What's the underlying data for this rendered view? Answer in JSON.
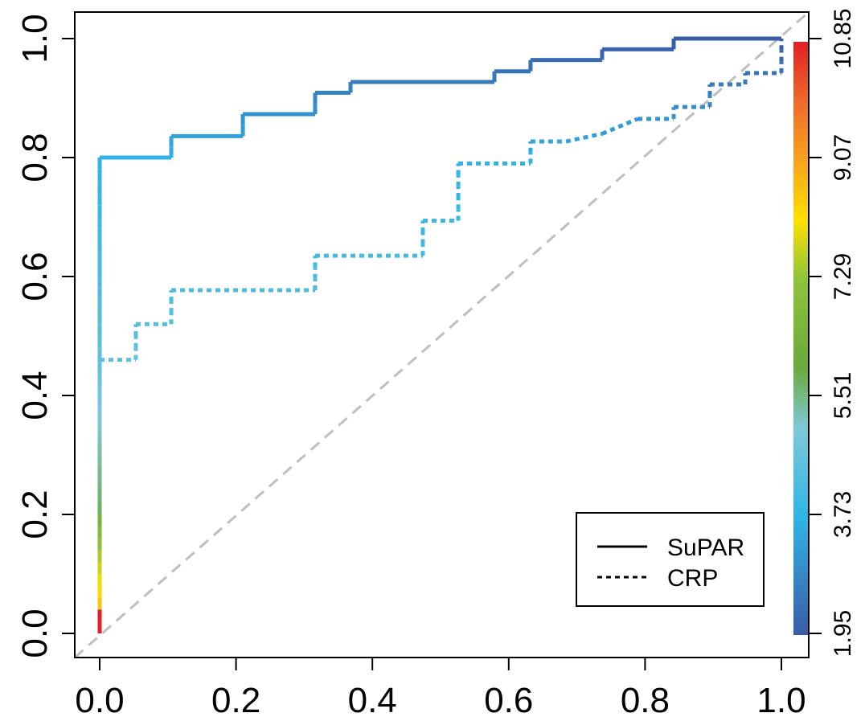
{
  "chart_data": {
    "type": "line",
    "xlim": [
      0,
      1
    ],
    "ylim": [
      0,
      1
    ],
    "x_ticks": [
      "0.0",
      "0.2",
      "0.4",
      "0.6",
      "0.8",
      "1.0"
    ],
    "y_ticks": [
      "0.0",
      "0.2",
      "0.4",
      "0.6",
      "0.8",
      "1.0"
    ],
    "colorbar": {
      "ticks": [
        "1.95",
        "3.73",
        "5.51",
        "7.29",
        "9.07",
        "10.85"
      ],
      "range": [
        1.95,
        10.85
      ],
      "colors": [
        "#3a5ba8",
        "#2fb5e6",
        "#7fc8d8",
        "#6aaa3a",
        "#8fc43a",
        "#ffe000",
        "#f7a21d",
        "#ee6a2a",
        "#e31e24"
      ]
    },
    "diagonal": {
      "style": "dashed",
      "color": "#bfbfbf"
    },
    "legend": {
      "position": "bottom-right"
    },
    "series": [
      {
        "name": "SuPAR",
        "style": "solid",
        "points": [
          [
            0,
            0
          ],
          [
            0,
            0.8
          ],
          [
            0.105,
            0.8
          ],
          [
            0.105,
            0.836
          ],
          [
            0.21,
            0.836
          ],
          [
            0.21,
            0.873
          ],
          [
            0.316,
            0.873
          ],
          [
            0.316,
            0.909
          ],
          [
            0.368,
            0.909
          ],
          [
            0.368,
            0.927
          ],
          [
            0.579,
            0.927
          ],
          [
            0.579,
            0.945
          ],
          [
            0.632,
            0.945
          ],
          [
            0.632,
            0.964
          ],
          [
            0.737,
            0.964
          ],
          [
            0.737,
            0.982
          ],
          [
            0.842,
            0.982
          ],
          [
            0.842,
            1.0
          ],
          [
            1.0,
            1.0
          ]
        ]
      },
      {
        "name": "CRP",
        "style": "dotted",
        "points": [
          [
            0,
            0
          ],
          [
            0,
            0.46
          ],
          [
            0.053,
            0.46
          ],
          [
            0.053,
            0.52
          ],
          [
            0.105,
            0.52
          ],
          [
            0.105,
            0.577
          ],
          [
            0.316,
            0.577
          ],
          [
            0.316,
            0.635
          ],
          [
            0.474,
            0.635
          ],
          [
            0.474,
            0.694
          ],
          [
            0.526,
            0.694
          ],
          [
            0.526,
            0.79
          ],
          [
            0.632,
            0.79
          ],
          [
            0.632,
            0.827
          ],
          [
            0.684,
            0.827
          ],
          [
            0.737,
            0.84
          ],
          [
            0.789,
            0.865
          ],
          [
            0.842,
            0.865
          ],
          [
            0.842,
            0.885
          ],
          [
            0.895,
            0.885
          ],
          [
            0.895,
            0.923
          ],
          [
            0.947,
            0.923
          ],
          [
            0.947,
            0.942
          ],
          [
            1.0,
            0.942
          ],
          [
            1.0,
            1.0
          ]
        ]
      }
    ]
  }
}
